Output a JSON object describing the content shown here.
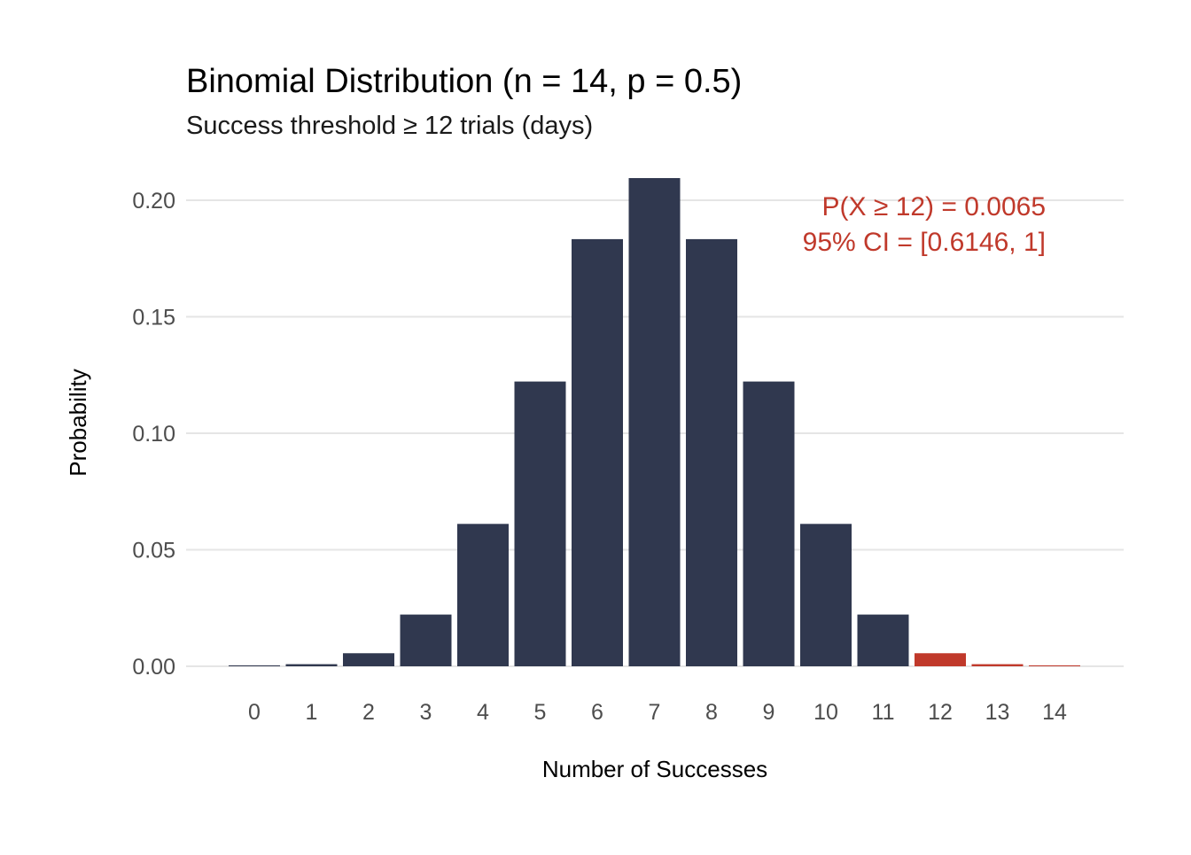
{
  "chart_data": {
    "type": "bar",
    "title": "Binomial Distribution (n = 14, p = 0.5)",
    "subtitle": "Success threshold ≥ 12 trials (days)",
    "xlabel": "Number of Successes",
    "ylabel": "Probability",
    "categories": [
      "0",
      "1",
      "2",
      "3",
      "4",
      "5",
      "6",
      "7",
      "8",
      "9",
      "10",
      "11",
      "12",
      "13",
      "14"
    ],
    "values": [
      0.0001,
      0.0009,
      0.0056,
      0.0222,
      0.0611,
      0.1222,
      0.1833,
      0.2095,
      0.1833,
      0.1222,
      0.0611,
      0.0222,
      0.0056,
      0.0009,
      0.0001
    ],
    "highlight_from": 12,
    "ylim": [
      0,
      0.2095
    ],
    "y_ticks": [
      0,
      0.05,
      0.1,
      0.15,
      0.2
    ],
    "y_tick_labels": [
      "0.00",
      "0.05",
      "0.10",
      "0.15",
      "0.20"
    ],
    "grid": true,
    "colors": {
      "bar": "#30384f",
      "highlight": "#c0392b",
      "annotation": "#c0392b",
      "grid": "#e5e5e5",
      "tick_text": "#4d4d4d",
      "text": "#000000"
    },
    "annotation": {
      "line1": "P(X ≥ 12) = 0.0065",
      "line2": "95% CI = [0.6146, 1]",
      "placement": "top-right"
    }
  }
}
